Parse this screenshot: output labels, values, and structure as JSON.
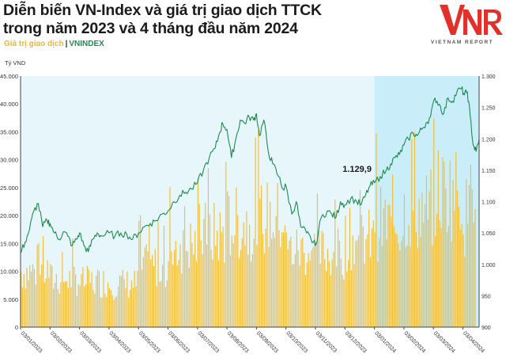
{
  "header": {
    "title_line1": "Diễn biến VN-Index và giá trị giao dịch TTCK",
    "title_line2": "trong năm 2023 và 4 tháng đầu năm 2024",
    "legend_value": "Giá trị giao dịch",
    "legend_sep": "|",
    "legend_index": "VNINDEX"
  },
  "logo": {
    "text": "VNR",
    "tagline": "VIETNAM REPORT",
    "color": "#e2312a"
  },
  "chart_data": {
    "type": "bar+line",
    "y_left_unit": "Tỷ VND",
    "y_left_ticks": [
      "0",
      "5.000",
      "10.000",
      "15.000",
      "20.000",
      "25.000",
      "30.000",
      "35.000",
      "40.000",
      "45.000"
    ],
    "y_left_range": [
      0,
      45000
    ],
    "y_right_ticks": [
      "900",
      "950",
      "1.000",
      "1.050",
      "1.100",
      "1.150",
      "1.200",
      "1.250",
      "1.300"
    ],
    "y_right_range": [
      900,
      1300
    ],
    "x_ticks": [
      "03/01/2023",
      "03/02/2023",
      "03/03/2023",
      "03/04/2023",
      "03/05/2023",
      "03/06/2023",
      "03/07/2023",
      "03/08/2023",
      "03/09/2023",
      "03/10/2023",
      "03/11/2023",
      "03/12/2023",
      "03/01/2024",
      "03/02/2024",
      "03/03/2024",
      "03/04/2024"
    ],
    "highlight_from": "03/01/2024",
    "annotation": {
      "text": "1.129,9",
      "at": "03/01/2024",
      "value": 1129.9
    },
    "colors": {
      "bars": "#f2bd3a",
      "line": "#1f8a4c",
      "bg_2023": "#e6f6fb",
      "bg_2024": "#c9eefa",
      "axis": "#444444"
    },
    "trading_value_monthly": [
      10500,
      9000,
      8500,
      8200,
      11500,
      15500,
      17500,
      19500,
      20500,
      14500,
      14000,
      16500,
      19500,
      22000,
      25500,
      21000
    ],
    "vnindex_points": [
      {
        "x": 0.0,
        "y": 1018
      },
      {
        "x": 0.15,
        "y": 1035
      },
      {
        "x": 0.3,
        "y": 1055
      },
      {
        "x": 0.45,
        "y": 1085
      },
      {
        "x": 0.6,
        "y": 1097
      },
      {
        "x": 0.75,
        "y": 1060
      },
      {
        "x": 0.9,
        "y": 1070
      },
      {
        "x": 1.0,
        "y": 1065
      },
      {
        "x": 1.15,
        "y": 1050
      },
      {
        "x": 1.3,
        "y": 1040
      },
      {
        "x": 1.45,
        "y": 1052
      },
      {
        "x": 1.6,
        "y": 1045
      },
      {
        "x": 1.75,
        "y": 1030
      },
      {
        "x": 1.9,
        "y": 1040
      },
      {
        "x": 2.0,
        "y": 1050
      },
      {
        "x": 2.15,
        "y": 1030
      },
      {
        "x": 2.3,
        "y": 1020
      },
      {
        "x": 2.45,
        "y": 1040
      },
      {
        "x": 2.6,
        "y": 1050
      },
      {
        "x": 2.75,
        "y": 1045
      },
      {
        "x": 3.0,
        "y": 1050
      },
      {
        "x": 3.2,
        "y": 1045
      },
      {
        "x": 3.4,
        "y": 1050
      },
      {
        "x": 3.6,
        "y": 1048
      },
      {
        "x": 3.8,
        "y": 1040
      },
      {
        "x": 4.0,
        "y": 1050
      },
      {
        "x": 4.2,
        "y": 1060
      },
      {
        "x": 4.4,
        "y": 1065
      },
      {
        "x": 4.6,
        "y": 1070
      },
      {
        "x": 4.8,
        "y": 1080
      },
      {
        "x": 5.0,
        "y": 1085
      },
      {
        "x": 5.2,
        "y": 1100
      },
      {
        "x": 5.4,
        "y": 1110
      },
      {
        "x": 5.6,
        "y": 1115
      },
      {
        "x": 5.8,
        "y": 1120
      },
      {
        "x": 6.0,
        "y": 1130
      },
      {
        "x": 6.2,
        "y": 1150
      },
      {
        "x": 6.4,
        "y": 1170
      },
      {
        "x": 6.6,
        "y": 1185
      },
      {
        "x": 6.75,
        "y": 1210
      },
      {
        "x": 6.85,
        "y": 1225
      },
      {
        "x": 7.0,
        "y": 1215
      },
      {
        "x": 7.15,
        "y": 1170
      },
      {
        "x": 7.3,
        "y": 1200
      },
      {
        "x": 7.45,
        "y": 1230
      },
      {
        "x": 7.6,
        "y": 1225
      },
      {
        "x": 7.75,
        "y": 1235
      },
      {
        "x": 7.9,
        "y": 1230
      },
      {
        "x": 8.0,
        "y": 1240
      },
      {
        "x": 8.1,
        "y": 1205
      },
      {
        "x": 8.25,
        "y": 1230
      },
      {
        "x": 8.4,
        "y": 1180
      },
      {
        "x": 8.55,
        "y": 1160
      },
      {
        "x": 8.75,
        "y": 1140
      },
      {
        "x": 8.9,
        "y": 1120
      },
      {
        "x": 9.0,
        "y": 1125
      },
      {
        "x": 9.2,
        "y": 1080
      },
      {
        "x": 9.35,
        "y": 1100
      },
      {
        "x": 9.5,
        "y": 1060
      },
      {
        "x": 9.7,
        "y": 1050
      },
      {
        "x": 9.85,
        "y": 1040
      },
      {
        "x": 10.0,
        "y": 1030
      },
      {
        "x": 10.2,
        "y": 1075
      },
      {
        "x": 10.4,
        "y": 1085
      },
      {
        "x": 10.55,
        "y": 1080
      },
      {
        "x": 10.7,
        "y": 1075
      },
      {
        "x": 10.85,
        "y": 1100
      },
      {
        "x": 11.0,
        "y": 1095
      },
      {
        "x": 11.2,
        "y": 1105
      },
      {
        "x": 11.4,
        "y": 1100
      },
      {
        "x": 11.55,
        "y": 1095
      },
      {
        "x": 11.7,
        "y": 1110
      },
      {
        "x": 11.85,
        "y": 1125
      },
      {
        "x": 12.0,
        "y": 1130
      },
      {
        "x": 12.2,
        "y": 1140
      },
      {
        "x": 12.4,
        "y": 1150
      },
      {
        "x": 12.55,
        "y": 1160
      },
      {
        "x": 12.7,
        "y": 1170
      },
      {
        "x": 12.85,
        "y": 1175
      },
      {
        "x": 13.0,
        "y": 1190
      },
      {
        "x": 13.15,
        "y": 1200
      },
      {
        "x": 13.3,
        "y": 1210
      },
      {
        "x": 13.45,
        "y": 1205
      },
      {
        "x": 13.6,
        "y": 1215
      },
      {
        "x": 13.75,
        "y": 1225
      },
      {
        "x": 13.9,
        "y": 1235
      },
      {
        "x": 14.05,
        "y": 1265
      },
      {
        "x": 14.2,
        "y": 1255
      },
      {
        "x": 14.35,
        "y": 1240
      },
      {
        "x": 14.5,
        "y": 1265
      },
      {
        "x": 14.65,
        "y": 1260
      },
      {
        "x": 14.8,
        "y": 1275
      },
      {
        "x": 14.95,
        "y": 1280
      },
      {
        "x": 15.05,
        "y": 1270
      },
      {
        "x": 15.15,
        "y": 1275
      },
      {
        "x": 15.25,
        "y": 1235
      },
      {
        "x": 15.35,
        "y": 1190
      },
      {
        "x": 15.45,
        "y": 1180
      },
      {
        "x": 15.55,
        "y": 1200
      }
    ]
  }
}
